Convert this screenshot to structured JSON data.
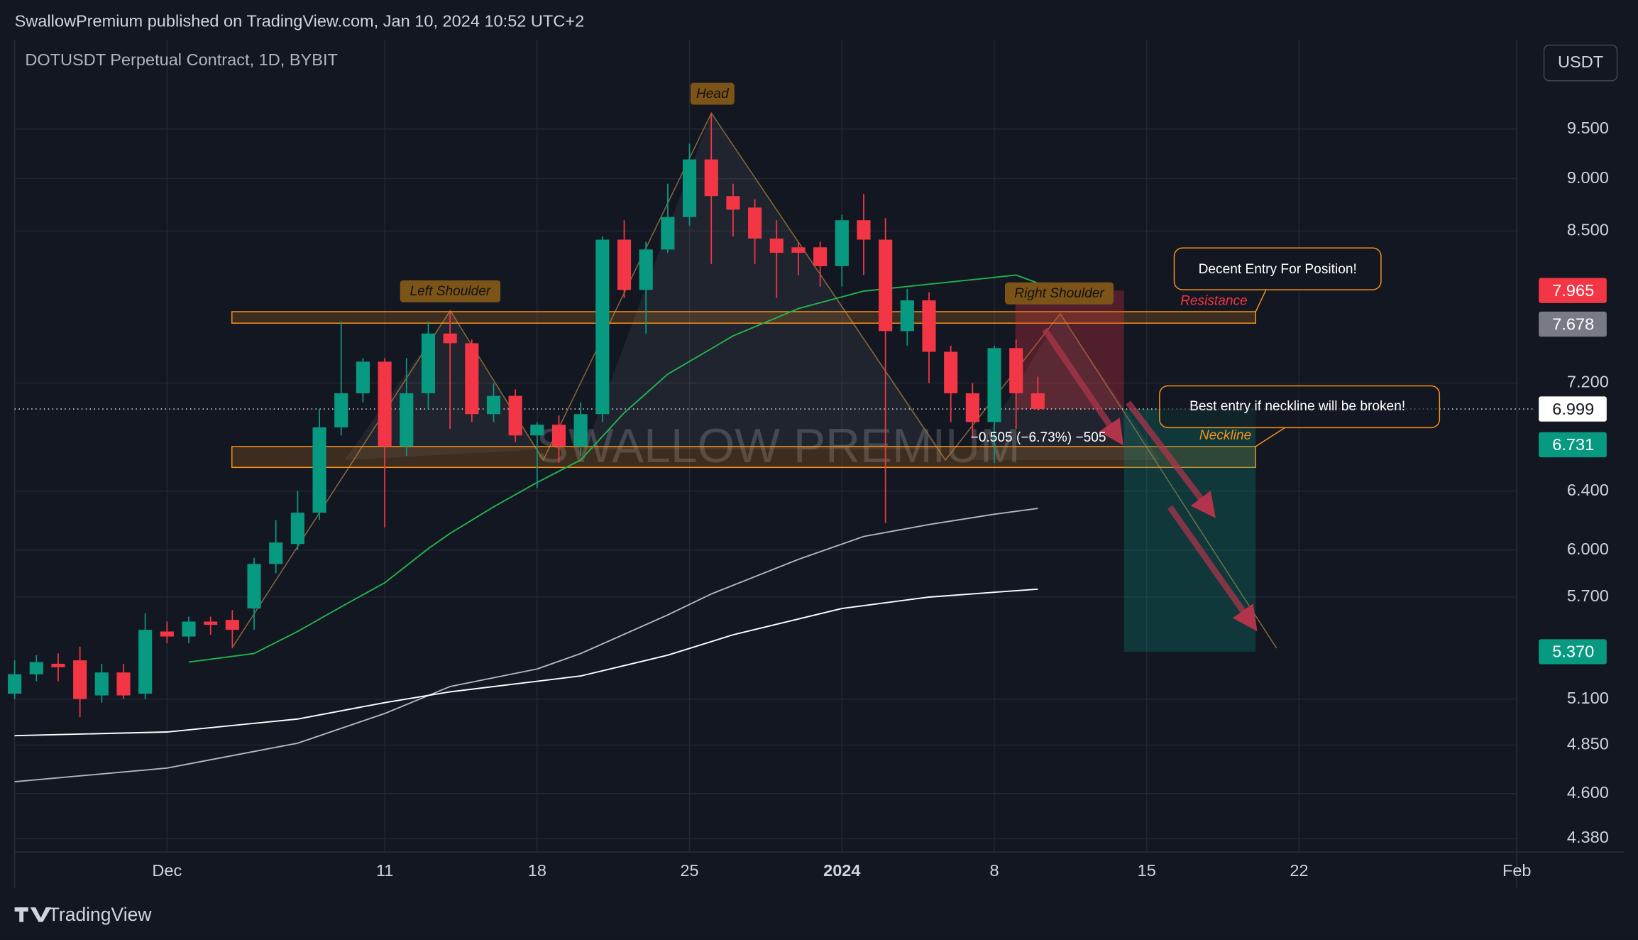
{
  "header": {
    "publisher": "SwallowPremium published on TradingView.com, Jan 10, 2024 10:52 UTC+2",
    "logo": "TradingView",
    "currency_button": "USDT"
  },
  "chart_data": {
    "type": "candlestick",
    "title": "DOTUSDT Perpetual Contract, 1D, BYBIT",
    "watermark": "SWALLOW PREMIUM",
    "log_scale": true,
    "grid": true,
    "up_color": "#089981",
    "down_color": "#f23645",
    "xlim": [
      -7,
      62
    ],
    "xticks": [
      {
        "value": 0,
        "label": "Dec"
      },
      {
        "value": 10,
        "label": "11"
      },
      {
        "value": 17,
        "label": "18"
      },
      {
        "value": 24,
        "label": "25"
      },
      {
        "value": 31,
        "label": "2024"
      },
      {
        "value": 38,
        "label": "8"
      },
      {
        "value": 45,
        "label": "15"
      },
      {
        "value": 52,
        "label": "22"
      },
      {
        "value": 62,
        "label": "Feb"
      }
    ],
    "ylim": [
      4.316,
      10.47
    ],
    "yticks": [
      {
        "value": 4.38,
        "label": "4.380"
      },
      {
        "value": 4.6,
        "label": "4.600"
      },
      {
        "value": 4.85,
        "label": "4.850"
      },
      {
        "value": 5.1,
        "label": "5.100"
      },
      {
        "value": 5.7,
        "label": "5.700"
      },
      {
        "value": 6,
        "label": "6.000"
      },
      {
        "value": 6.4,
        "label": "6.400"
      },
      {
        "value": 7.2,
        "label": "7.200"
      },
      {
        "value": 8.5,
        "label": "8.500"
      },
      {
        "value": 9,
        "label": "9.000"
      },
      {
        "value": 9.5,
        "label": "9.500"
      }
    ],
    "x": [
      -7,
      -6,
      -5,
      -4,
      -3,
      -2,
      -1,
      0,
      1,
      2,
      3,
      4,
      5,
      6,
      7,
      8,
      9,
      10,
      11,
      12,
      13,
      14,
      15,
      16,
      17,
      18,
      19,
      20,
      21,
      22,
      23,
      24,
      25,
      26,
      27,
      28,
      29,
      30,
      31,
      32,
      33,
      34,
      35,
      36,
      37,
      38,
      39,
      40
    ],
    "open": [
      5.13,
      5.24,
      5.3,
      5.32,
      5.12,
      5.25,
      5.13,
      5.49,
      5.46,
      5.55,
      5.56,
      5.63,
      5.91,
      6.04,
      6.25,
      6.86,
      7.12,
      7.37,
      6.72,
      7.12,
      7.6,
      7.52,
      6.96,
      7.1,
      6.8,
      6.88,
      6.72,
      6.96,
      8.42,
      7.97,
      8.33,
      8.63,
      9.19,
      8.83,
      8.72,
      8.43,
      8.35,
      8.35,
      8.18,
      8.6,
      8.42,
      7.62,
      7.88,
      7.45,
      7.12,
      6.9,
      7.48,
      7.12
    ],
    "high": [
      5.32,
      5.35,
      5.36,
      5.4,
      5.3,
      5.3,
      5.6,
      5.55,
      5.58,
      5.58,
      5.62,
      5.95,
      6.2,
      6.4,
      7.0,
      7.7,
      7.4,
      7.4,
      7.4,
      7.7,
      7.78,
      7.55,
      7.2,
      7.15,
      6.9,
      6.95,
      7.05,
      8.45,
      8.6,
      8.4,
      8.95,
      9.35,
      9.66,
      8.95,
      8.8,
      8.6,
      8.4,
      8.4,
      8.65,
      8.85,
      8.62,
      7.98,
      7.95,
      7.5,
      7.2,
      7.5,
      7.55,
      7.25
    ],
    "low": [
      5.1,
      5.2,
      5.2,
      5.0,
      5.08,
      5.1,
      5.1,
      5.42,
      5.42,
      5.47,
      5.4,
      5.5,
      5.85,
      6.0,
      6.2,
      6.8,
      7.05,
      6.15,
      6.65,
      7.0,
      6.85,
      6.9,
      6.9,
      6.75,
      6.42,
      6.6,
      6.65,
      6.9,
      7.9,
      7.6,
      8.3,
      8.55,
      8.2,
      8.45,
      8.2,
      7.9,
      8.1,
      8.0,
      8.0,
      8.1,
      6.18,
      7.5,
      7.2,
      6.9,
      6.78,
      6.6,
      6.85,
      6.99
    ],
    "close": [
      5.24,
      5.31,
      5.28,
      5.1,
      5.25,
      5.12,
      5.5,
      5.46,
      5.55,
      5.53,
      5.5,
      5.91,
      6.05,
      6.25,
      6.86,
      7.12,
      7.37,
      6.72,
      7.12,
      7.6,
      7.52,
      6.96,
      7.1,
      6.8,
      6.88,
      6.72,
      6.96,
      8.42,
      7.97,
      8.33,
      8.63,
      9.19,
      8.83,
      8.7,
      8.43,
      8.3,
      8.3,
      8.18,
      8.6,
      8.42,
      7.62,
      7.88,
      7.45,
      7.12,
      6.9,
      7.48,
      7.12,
      6.999
    ],
    "series": [
      {
        "color": "#22b24c",
        "x": [
          1,
          4,
          6,
          8,
          10,
          12,
          13,
          15,
          17,
          19,
          21,
          23,
          26,
          29,
          32,
          35,
          38,
          39,
          40
        ],
        "values": [
          5.31,
          5.36,
          5.49,
          5.64,
          5.79,
          6.01,
          6.11,
          6.29,
          6.46,
          6.62,
          6.97,
          7.27,
          7.58,
          7.81,
          7.96,
          8.02,
          8.08,
          8.1,
          8.03
        ]
      },
      {
        "color": "#b2b5be",
        "x": [
          -7,
          0,
          6,
          10,
          13,
          17,
          19,
          23,
          25,
          29,
          32,
          35,
          38,
          40
        ],
        "values": [
          4.66,
          4.73,
          4.86,
          5.02,
          5.17,
          5.27,
          5.36,
          5.59,
          5.72,
          5.94,
          6.09,
          6.17,
          6.24,
          6.28
        ]
      },
      {
        "color": "#ffffff",
        "x": [
          -7,
          0,
          6,
          10,
          13,
          19,
          23,
          26,
          31,
          35,
          38,
          40
        ],
        "values": [
          4.9,
          4.92,
          4.99,
          5.08,
          5.14,
          5.23,
          5.35,
          5.47,
          5.63,
          5.7,
          5.73,
          5.75
        ]
      }
    ],
    "price_labels": [
      {
        "value": 7.965,
        "label": "7.965",
        "color": "#f23645",
        "text_color": "#ffffff"
      },
      {
        "value": 7.678,
        "label": "7.678",
        "color": "#787b86",
        "text_color": "#ffffff"
      },
      {
        "value": 6.999,
        "label": "6.999",
        "color": "#ffffff",
        "text_color": "#131722"
      },
      {
        "value": 6.731,
        "label": "6.731",
        "color": "#089981",
        "text_color": "#ffffff"
      },
      {
        "value": 5.37,
        "label": "5.370",
        "color": "#089981",
        "text_color": "#ffffff"
      }
    ],
    "annotations": {
      "head": "Head",
      "left_shoulder": "Left Shoulder",
      "right_shoulder": "Right Shoulder",
      "resistance": "Resistance",
      "neckline": "Neckline",
      "callout_1": "Decent Entry For Position!",
      "callout_2": "Best entry if neckline will be broken!",
      "measure": "−0.505 (−6.73%) −505"
    }
  }
}
